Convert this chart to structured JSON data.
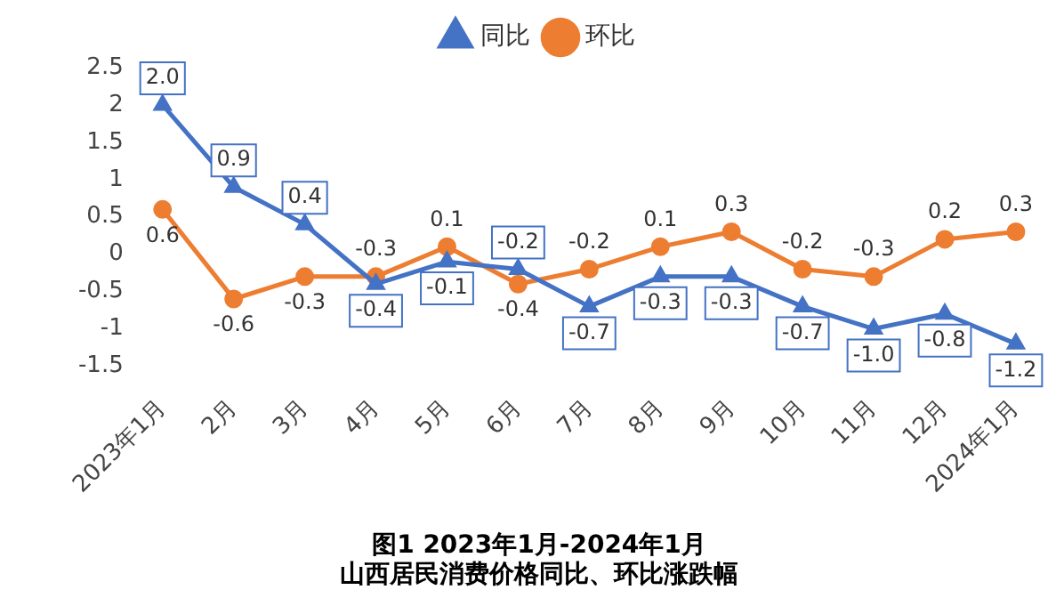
{
  "chart_data": {
    "type": "line",
    "title": [
      "图1 2023年1月-2024年1月",
      "山西居民消费价格同比、环比涨跌幅"
    ],
    "categories": [
      "2023年1月",
      "2月",
      "3月",
      "4月",
      "5月",
      "6月",
      "7月",
      "8月",
      "9月",
      "10月",
      "11月",
      "12月",
      "2024年1月"
    ],
    "series": [
      {
        "name": "同比",
        "color": "#4472c4",
        "marker": "triangle",
        "values": [
          2.0,
          0.9,
          0.4,
          -0.4,
          -0.1,
          -0.2,
          -0.7,
          -0.3,
          -0.3,
          -0.7,
          -1.0,
          -0.8,
          -1.2
        ],
        "value_labels": [
          "2.0",
          "0.9",
          "0.4",
          "-0.4",
          "-0.1",
          "-0.2",
          "-0.7",
          "-0.3",
          "-0.3",
          "-0.7",
          "-1.0",
          "-0.8",
          "-1.2"
        ]
      },
      {
        "name": "环比",
        "color": "#ed7d31",
        "marker": "circle",
        "values": [
          0.6,
          -0.6,
          -0.3,
          -0.3,
          0.1,
          -0.4,
          -0.2,
          0.1,
          0.3,
          -0.2,
          -0.3,
          0.2,
          0.3
        ],
        "value_labels": [
          "0.6",
          "-0.6",
          "-0.3",
          "-0.3",
          "0.1",
          "-0.4",
          "-0.2",
          "0.1",
          "0.3",
          "-0.2",
          "-0.3",
          "0.2",
          "0.3"
        ]
      }
    ],
    "ylim": [
      -1.5,
      2.5
    ],
    "yticks": [
      -1.5,
      -1,
      -0.5,
      0,
      0.5,
      1,
      1.5,
      2,
      2.5
    ],
    "grid": false,
    "legend": "top"
  }
}
